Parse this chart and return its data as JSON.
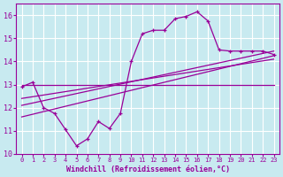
{
  "bg_color": "#c8eaf0",
  "grid_color": "#ffffff",
  "line_color": "#990099",
  "xlabel": "Windchill (Refroidissement éolien,°C)",
  "xlabel_color": "#990099",
  "xlim": [
    -0.5,
    23.5
  ],
  "ylim": [
    10,
    16.5
  ],
  "yticks": [
    10,
    11,
    12,
    13,
    14,
    15,
    16
  ],
  "xticks": [
    0,
    1,
    2,
    3,
    4,
    5,
    6,
    7,
    8,
    9,
    10,
    11,
    12,
    13,
    14,
    15,
    16,
    17,
    18,
    19,
    20,
    21,
    22,
    23
  ],
  "series1_x": [
    0,
    1,
    2,
    3,
    4,
    5,
    6,
    7,
    8,
    9,
    10,
    11,
    12,
    13,
    14,
    15,
    16,
    17,
    18,
    19,
    20,
    21,
    22,
    23
  ],
  "series1_y": [
    12.9,
    13.1,
    12.0,
    11.75,
    11.05,
    10.35,
    10.65,
    11.4,
    11.1,
    11.75,
    14.0,
    15.2,
    15.35,
    15.35,
    15.85,
    15.95,
    16.15,
    15.75,
    14.5,
    14.45,
    14.45,
    14.45,
    14.45,
    14.3
  ],
  "series2_x": [
    0,
    23
  ],
  "series2_y": [
    13.0,
    13.0
  ],
  "trend1_x": [
    0,
    23
  ],
  "trend1_y": [
    11.6,
    14.25
  ],
  "trend2_x": [
    0,
    23
  ],
  "trend2_y": [
    12.1,
    14.45
  ],
  "trend3_x": [
    0,
    23
  ],
  "trend3_y": [
    12.4,
    14.1
  ]
}
